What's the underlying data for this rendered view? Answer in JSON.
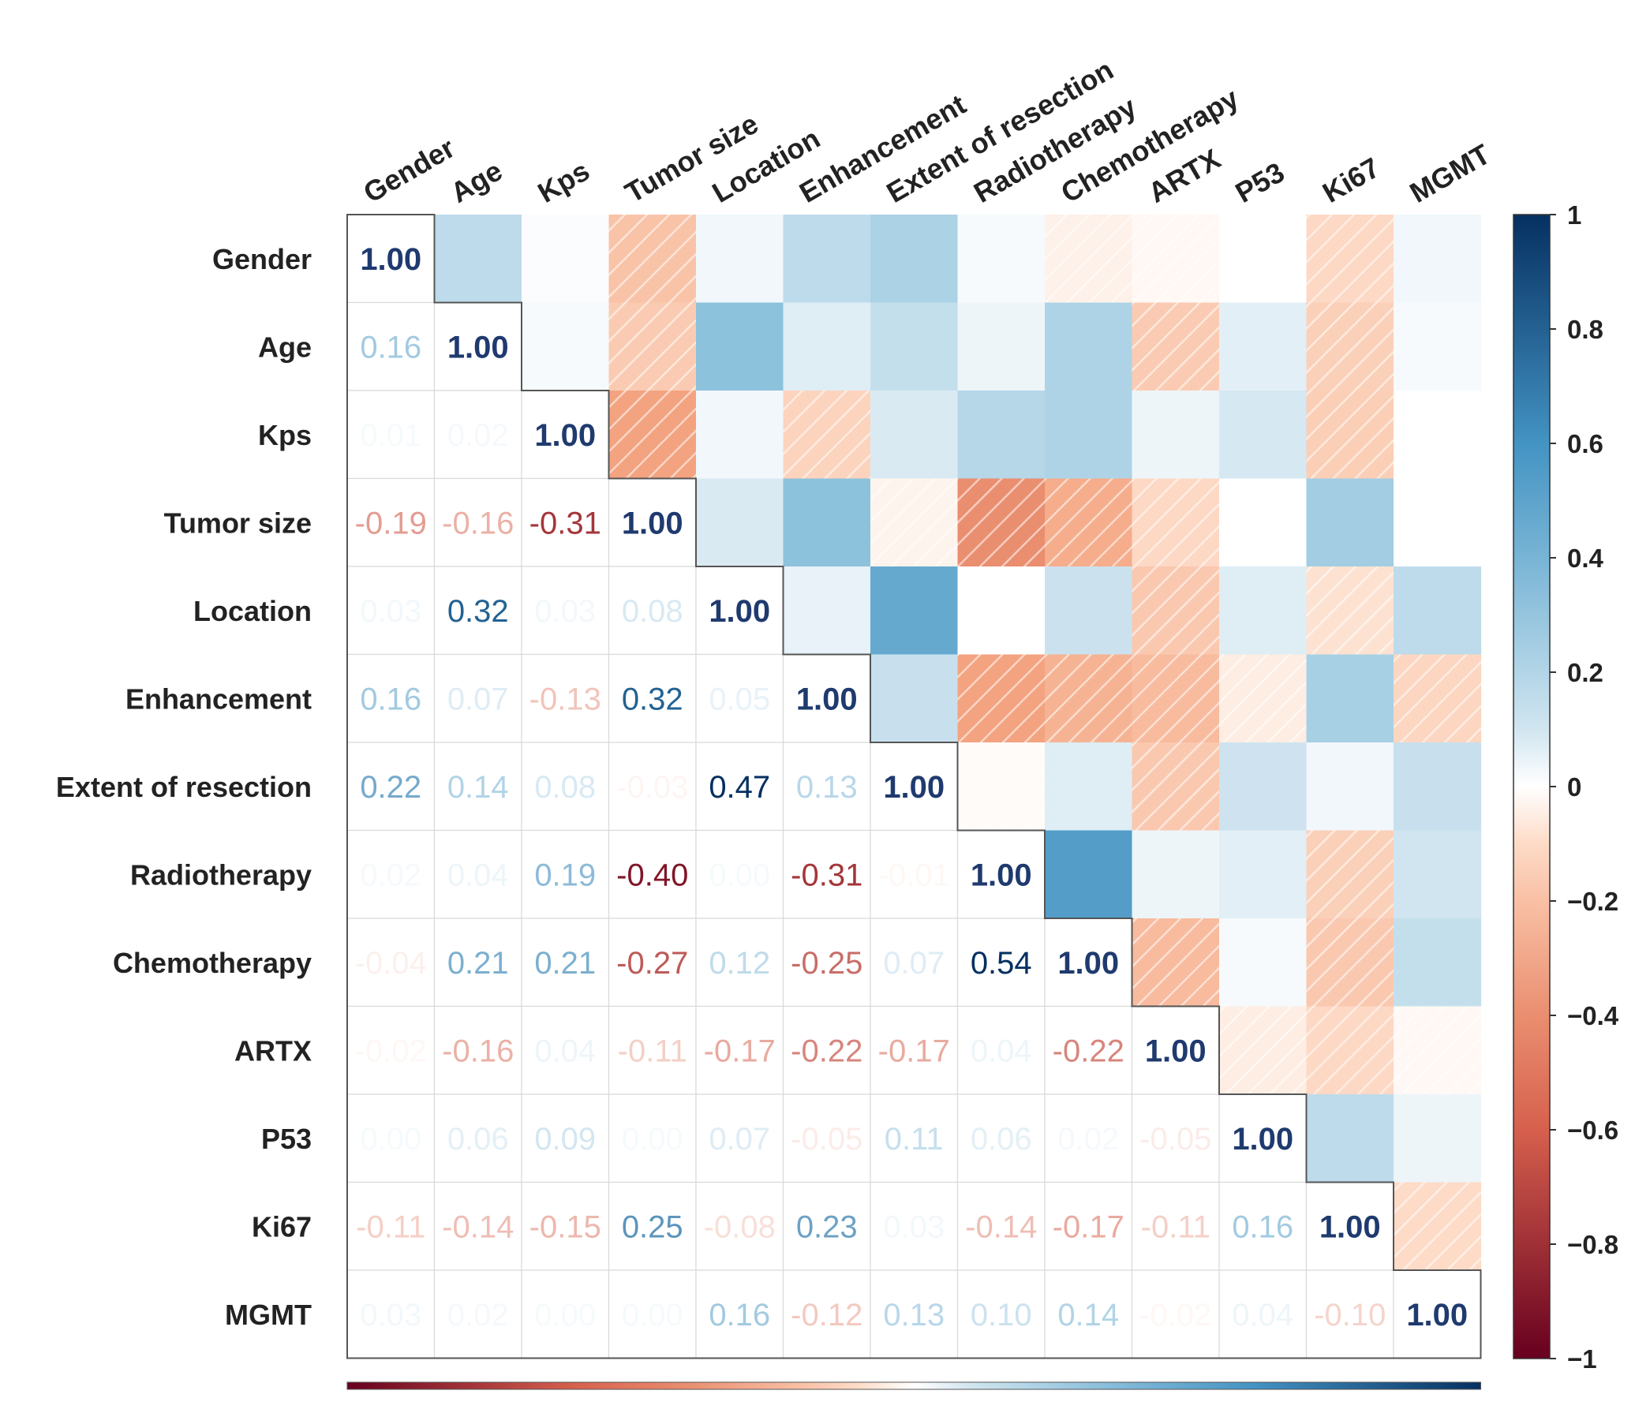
{
  "chart_data": {
    "type": "heatmap",
    "subtype": "correlation-matrix (mixed: numbers in lower triangle, shaded squares in upper triangle, hatched for negative)",
    "title": "",
    "variables": [
      "Gender",
      "Age",
      "Kps",
      "Tumor size",
      "Location",
      "Enhancement",
      "Extent of resection",
      "Radiotherapy",
      "Chemotherapy",
      "ARTX",
      "P53",
      "Ki67",
      "MGMT"
    ],
    "matrix": [
      [
        1.0,
        0.16,
        0.01,
        -0.19,
        0.03,
        0.16,
        0.22,
        0.02,
        -0.04,
        -0.02,
        0.0,
        -0.11,
        0.03
      ],
      [
        0.16,
        1.0,
        0.02,
        -0.16,
        0.32,
        0.07,
        0.14,
        0.04,
        0.21,
        -0.16,
        0.06,
        -0.14,
        0.02
      ],
      [
        0.01,
        0.02,
        1.0,
        -0.31,
        0.03,
        -0.13,
        0.08,
        0.19,
        0.21,
        0.04,
        0.09,
        -0.15,
        0.0
      ],
      [
        -0.19,
        -0.16,
        -0.31,
        1.0,
        0.08,
        0.32,
        -0.03,
        -0.4,
        -0.27,
        -0.11,
        0.0,
        0.25,
        0.0
      ],
      [
        0.03,
        0.32,
        0.03,
        0.08,
        1.0,
        0.05,
        0.47,
        0.0,
        0.12,
        -0.17,
        0.07,
        -0.08,
        0.16
      ],
      [
        0.16,
        0.07,
        -0.13,
        0.32,
        0.05,
        1.0,
        0.13,
        -0.31,
        -0.25,
        -0.22,
        -0.05,
        0.23,
        -0.12
      ],
      [
        0.22,
        0.14,
        0.08,
        -0.03,
        0.47,
        0.13,
        1.0,
        -0.01,
        0.07,
        -0.17,
        0.11,
        0.03,
        0.13
      ],
      [
        0.02,
        0.04,
        0.19,
        -0.4,
        0.0,
        -0.31,
        -0.01,
        1.0,
        0.54,
        0.04,
        0.06,
        -0.14,
        0.1
      ],
      [
        -0.04,
        0.21,
        0.21,
        -0.27,
        0.12,
        -0.25,
        0.07,
        0.54,
        1.0,
        -0.22,
        0.02,
        -0.17,
        0.14
      ],
      [
        -0.02,
        -0.16,
        0.04,
        -0.11,
        -0.17,
        -0.22,
        -0.17,
        0.04,
        -0.22,
        1.0,
        -0.05,
        -0.11,
        -0.02
      ],
      [
        0.0,
        0.06,
        0.09,
        0.0,
        0.07,
        -0.05,
        0.11,
        0.06,
        0.02,
        -0.05,
        1.0,
        0.16,
        0.04
      ],
      [
        -0.11,
        -0.14,
        -0.15,
        0.25,
        -0.08,
        0.23,
        0.03,
        -0.14,
        -0.17,
        -0.11,
        0.16,
        1.0,
        -0.1
      ],
      [
        0.03,
        0.02,
        0.0,
        0.0,
        0.16,
        -0.12,
        0.13,
        0.1,
        0.14,
        -0.02,
        0.04,
        -0.1,
        1.0
      ]
    ],
    "colorbar": {
      "range": [
        -1,
        1
      ],
      "ticks": [
        "1",
        "0.8",
        "0.6",
        "0.4",
        "0.2",
        "0",
        "−0.2",
        "−0.4",
        "−0.6",
        "−0.8",
        "−1"
      ],
      "colors": {
        "neg_strong": "#67001f",
        "neg_mid": "#d6604d",
        "neg_light": "#f4a582",
        "neg_pale": "#fddbc7",
        "zero": "#ffffff",
        "pos_pale": "#d1e5f0",
        "pos_light": "#92c5de",
        "pos_mid": "#4393c3",
        "pos_strong": "#053061"
      }
    },
    "notes": {
      "upper_triangle": "colored squares, negative values hatched",
      "lower_triangle": "correlation coefficients printed in color",
      "diagonal": "1.00"
    }
  }
}
